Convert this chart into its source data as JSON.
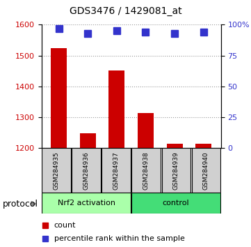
{
  "title": "GDS3476 / 1429081_at",
  "samples": [
    "GSM284935",
    "GSM284936",
    "GSM284937",
    "GSM284938",
    "GSM284939",
    "GSM284940"
  ],
  "bar_values": [
    1523,
    1248,
    1452,
    1313,
    1215,
    1215
  ],
  "percentile_values": [
    97,
    93,
    95,
    94,
    93,
    94
  ],
  "bar_color": "#cc0000",
  "percentile_color": "#3333cc",
  "ylim_left": [
    1200,
    1600
  ],
  "ylim_right": [
    0,
    100
  ],
  "yticks_left": [
    1200,
    1300,
    1400,
    1500,
    1600
  ],
  "yticks_right": [
    0,
    25,
    50,
    75,
    100
  ],
  "ytick_right_labels": [
    "0",
    "25",
    "50",
    "75",
    "100%"
  ],
  "groups": [
    {
      "label": "Nrf2 activation",
      "indices": [
        0,
        1,
        2
      ],
      "color": "#aaffaa"
    },
    {
      "label": "control",
      "indices": [
        3,
        4,
        5
      ],
      "color": "#44dd77"
    }
  ],
  "protocol_label": "protocol",
  "legend_count_label": "count",
  "legend_percentile_label": "percentile rank within the sample",
  "grid_color": "#999999",
  "bar_width": 0.55,
  "percentile_marker_size": 7,
  "sample_box_color": "#d0d0d0"
}
